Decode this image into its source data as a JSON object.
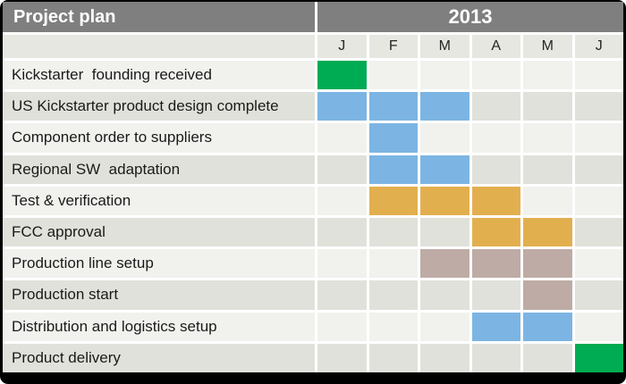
{
  "chart_data": {
    "type": "table",
    "subtype": "gantt",
    "title": "Project plan",
    "year_header": "2013",
    "month_labels": [
      "J",
      "F",
      "M",
      "A",
      "M",
      "J"
    ],
    "rows": [
      {
        "label": "Kickstarter  founding received",
        "cells": [
          "green",
          "",
          "",
          "",
          "",
          ""
        ]
      },
      {
        "label": "US Kickstarter product design complete",
        "cells": [
          "blue",
          "blue",
          "blue",
          "",
          "",
          ""
        ]
      },
      {
        "label": "Component order to suppliers",
        "cells": [
          "",
          "blue",
          "",
          "",
          "",
          ""
        ]
      },
      {
        "label": "Regional SW  adaptation",
        "cells": [
          "",
          "blue",
          "blue",
          "",
          "",
          ""
        ]
      },
      {
        "label": "Test & verification",
        "cells": [
          "",
          "orange",
          "orange",
          "orange",
          "",
          ""
        ]
      },
      {
        "label": "FCC approval",
        "cells": [
          "",
          "",
          "",
          "orange",
          "orange",
          ""
        ]
      },
      {
        "label": "Production line setup",
        "cells": [
          "",
          "",
          "mauve",
          "mauve",
          "mauve",
          ""
        ]
      },
      {
        "label": "Production start",
        "cells": [
          "",
          "",
          "",
          "",
          "mauve",
          ""
        ]
      },
      {
        "label": "Distribution and logistics setup",
        "cells": [
          "",
          "",
          "",
          "blue",
          "blue",
          ""
        ]
      },
      {
        "label": "Product delivery",
        "cells": [
          "",
          "",
          "",
          "",
          "",
          "green"
        ]
      }
    ],
    "colors": {
      "green": "#00AC53",
      "blue": "#7CB5E3",
      "orange": "#E2AF4F",
      "mauve": "#BEABA5",
      "header_bg": "#7F7F7F",
      "header_text": "#FFFFFF",
      "month_row_bg": "#E6E7E0",
      "row_odd_bg": "#F1F1EE",
      "row_even_bg": "#E0E1DA",
      "grid_line": "#FFFFFF",
      "frame": "#000000",
      "label_text": "#1A1A1A"
    },
    "layout": {
      "legend": "none",
      "grid": "white gridlines, alternating row stripes"
    }
  }
}
